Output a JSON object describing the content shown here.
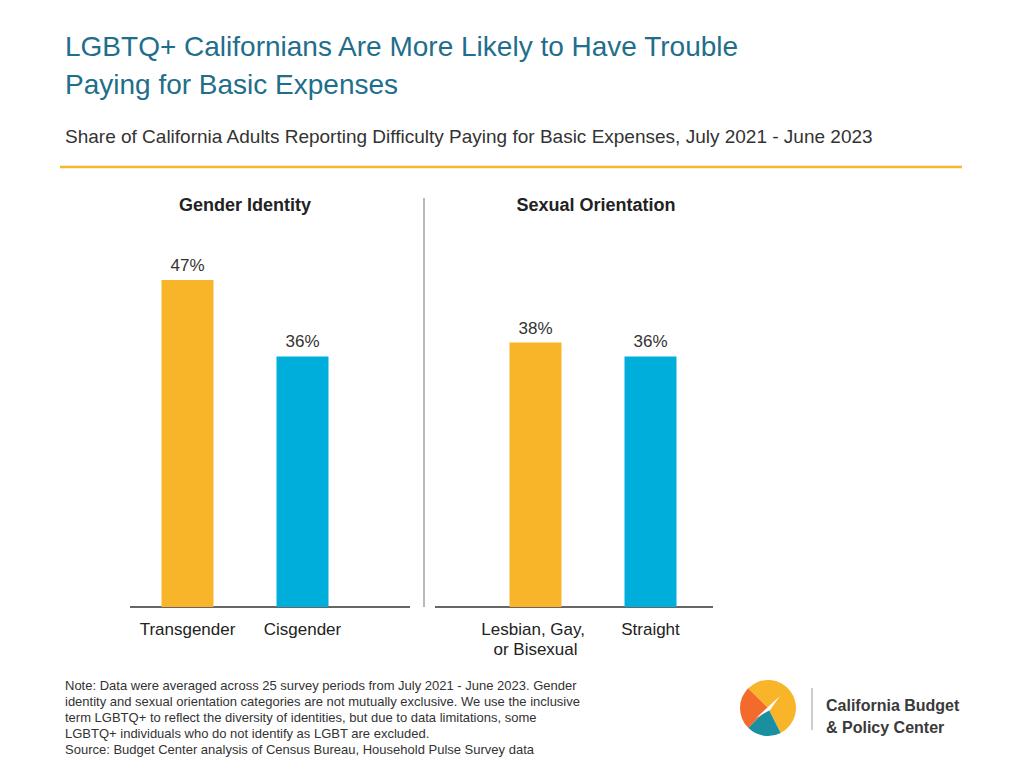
{
  "title": [
    "LGBTQ+ Californians Are More Likely to Have Trouble",
    "Paying for Basic Expenses"
  ],
  "subtitle": "Share of California Adults Reporting Difficulty Paying for Basic Expenses, July 2021 - June 2023",
  "note": [
    "Note: Data were averaged across 25 survey periods from July 2021 - June 2023. Gender",
    "identity and sexual orientation categories are not mutually exclusive. We use the inclusive",
    "term LGBTQ+ to reflect the diversity of identities, but due to data limitations, some",
    "LGBTQ+ individuals who do not identify as LGBT are excluded."
  ],
  "source": "Source: Budget Center analysis of Census Bureau, Household Pulse Survey data",
  "logo_text": [
    "California Budget",
    "& Policy Center"
  ],
  "chart_data": [
    {
      "type": "bar",
      "title": "Gender Identity",
      "categories": [
        "Transgender",
        "Cisgender"
      ],
      "values": [
        47,
        36
      ],
      "value_labels": [
        "47%",
        "36%"
      ],
      "colors": [
        "#f9b52a",
        "#00aedb"
      ],
      "ylim": [
        0,
        50
      ],
      "grid": false,
      "data_labels": true,
      "tick_labels": "x"
    },
    {
      "type": "bar",
      "title": "Sexual Orientation",
      "categories": [
        "Lesbian, Gay, or Bisexual",
        "Straight"
      ],
      "values": [
        38,
        36
      ],
      "value_labels": [
        "38%",
        "36%"
      ],
      "colors": [
        "#f9b52a",
        "#00aedb"
      ],
      "ylim": [
        0,
        50
      ],
      "grid": false,
      "data_labels": true,
      "tick_labels": "x"
    }
  ]
}
